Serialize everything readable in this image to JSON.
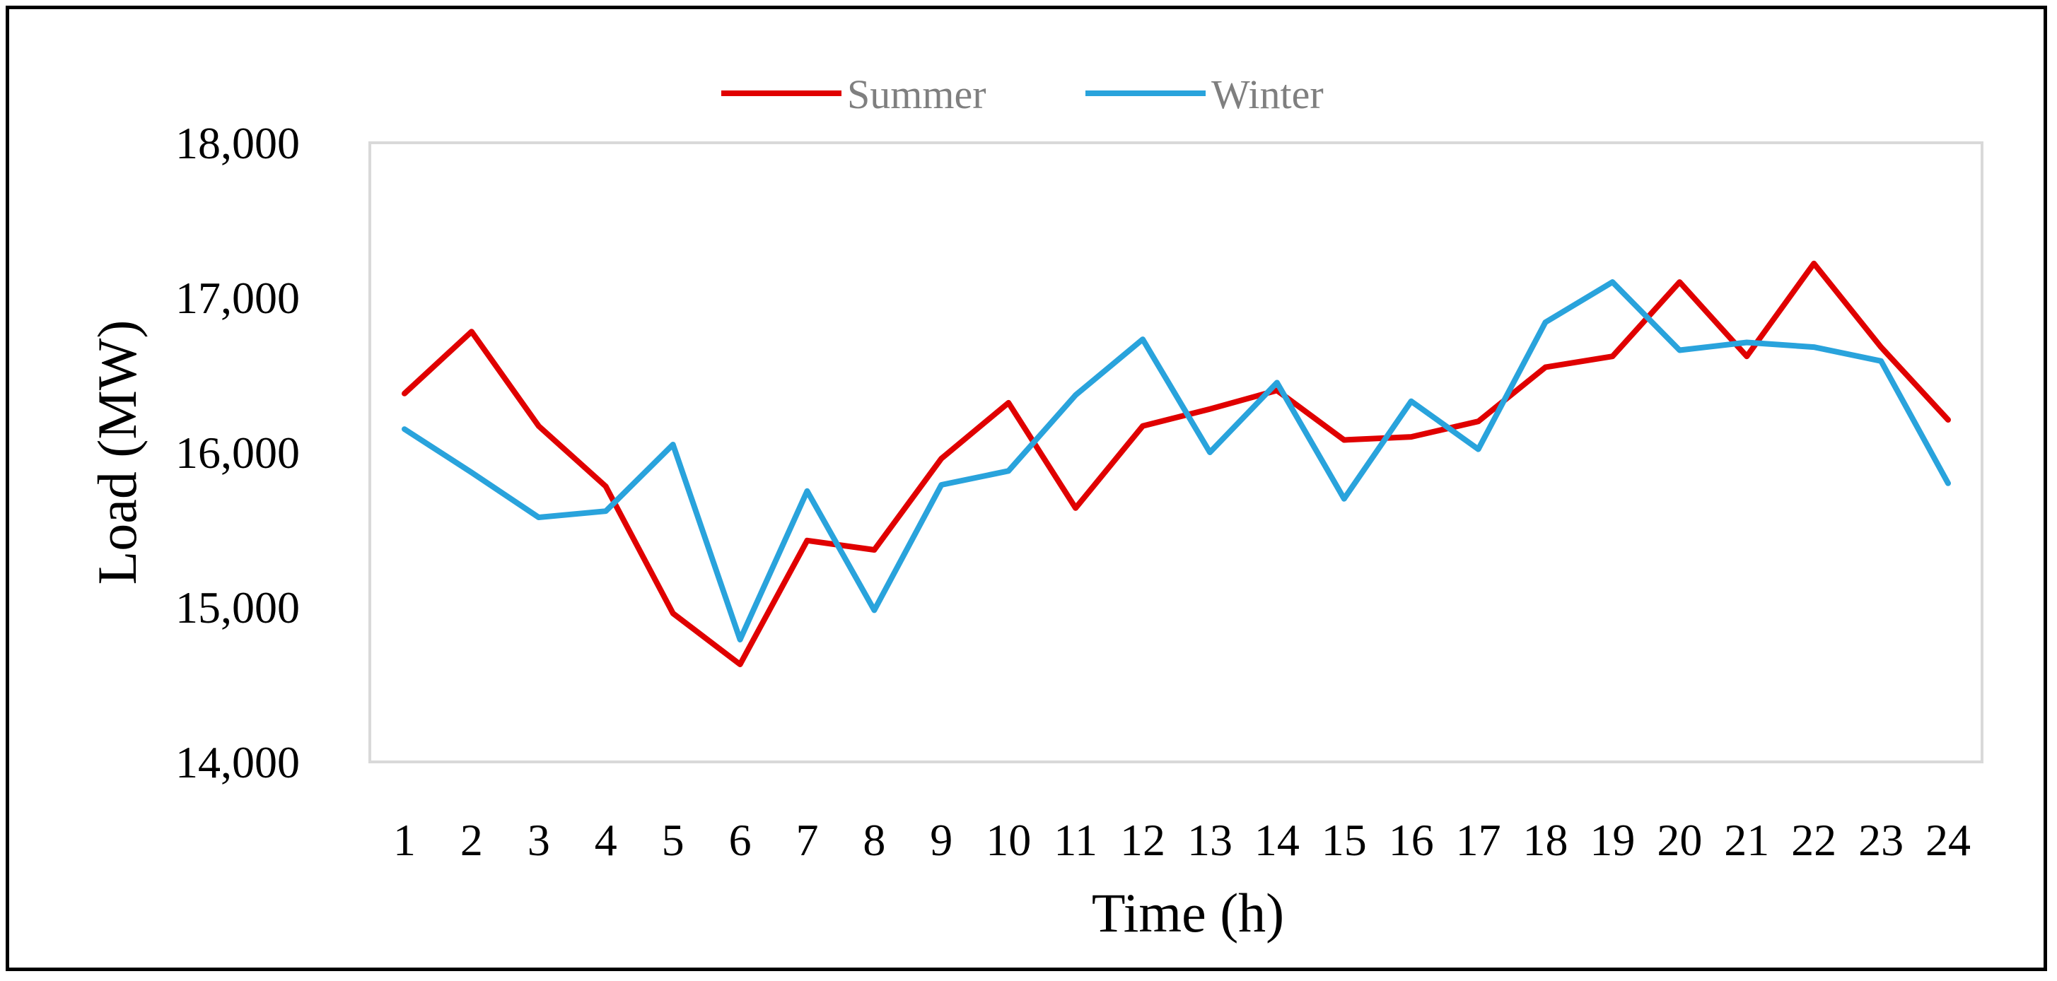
{
  "chart_data": {
    "type": "line",
    "title": "",
    "xlabel": "Time (h)",
    "ylabel": "Load (MW)",
    "ylim": [
      14000,
      18000
    ],
    "yticks": [
      14000,
      15000,
      16000,
      17000,
      18000
    ],
    "ytick_labels": [
      "14,000",
      "15,000",
      "16,000",
      "17,000",
      "18,000"
    ],
    "categories": [
      "1",
      "2",
      "3",
      "4",
      "5",
      "6",
      "7",
      "8",
      "9",
      "10",
      "11",
      "12",
      "13",
      "14",
      "15",
      "16",
      "17",
      "18",
      "19",
      "20",
      "21",
      "22",
      "23",
      "24"
    ],
    "grid": false,
    "legend_position": "top-center",
    "series": [
      {
        "name": "Summer",
        "color": "#e00000",
        "values": [
          16380,
          16780,
          16170,
          15780,
          14960,
          14630,
          15430,
          15370,
          15960,
          16320,
          15640,
          16170,
          16280,
          16400,
          16080,
          16100,
          16200,
          16550,
          16620,
          17100,
          16620,
          17220,
          16680,
          16210
        ]
      },
      {
        "name": "Winter",
        "color": "#29a3dc",
        "values": [
          16150,
          15870,
          15580,
          15620,
          16050,
          14790,
          15750,
          14980,
          15790,
          15880,
          16370,
          16730,
          16000,
          16450,
          15700,
          16330,
          16020,
          16840,
          17100,
          16660,
          16710,
          16680,
          16590,
          15800
        ]
      }
    ]
  }
}
